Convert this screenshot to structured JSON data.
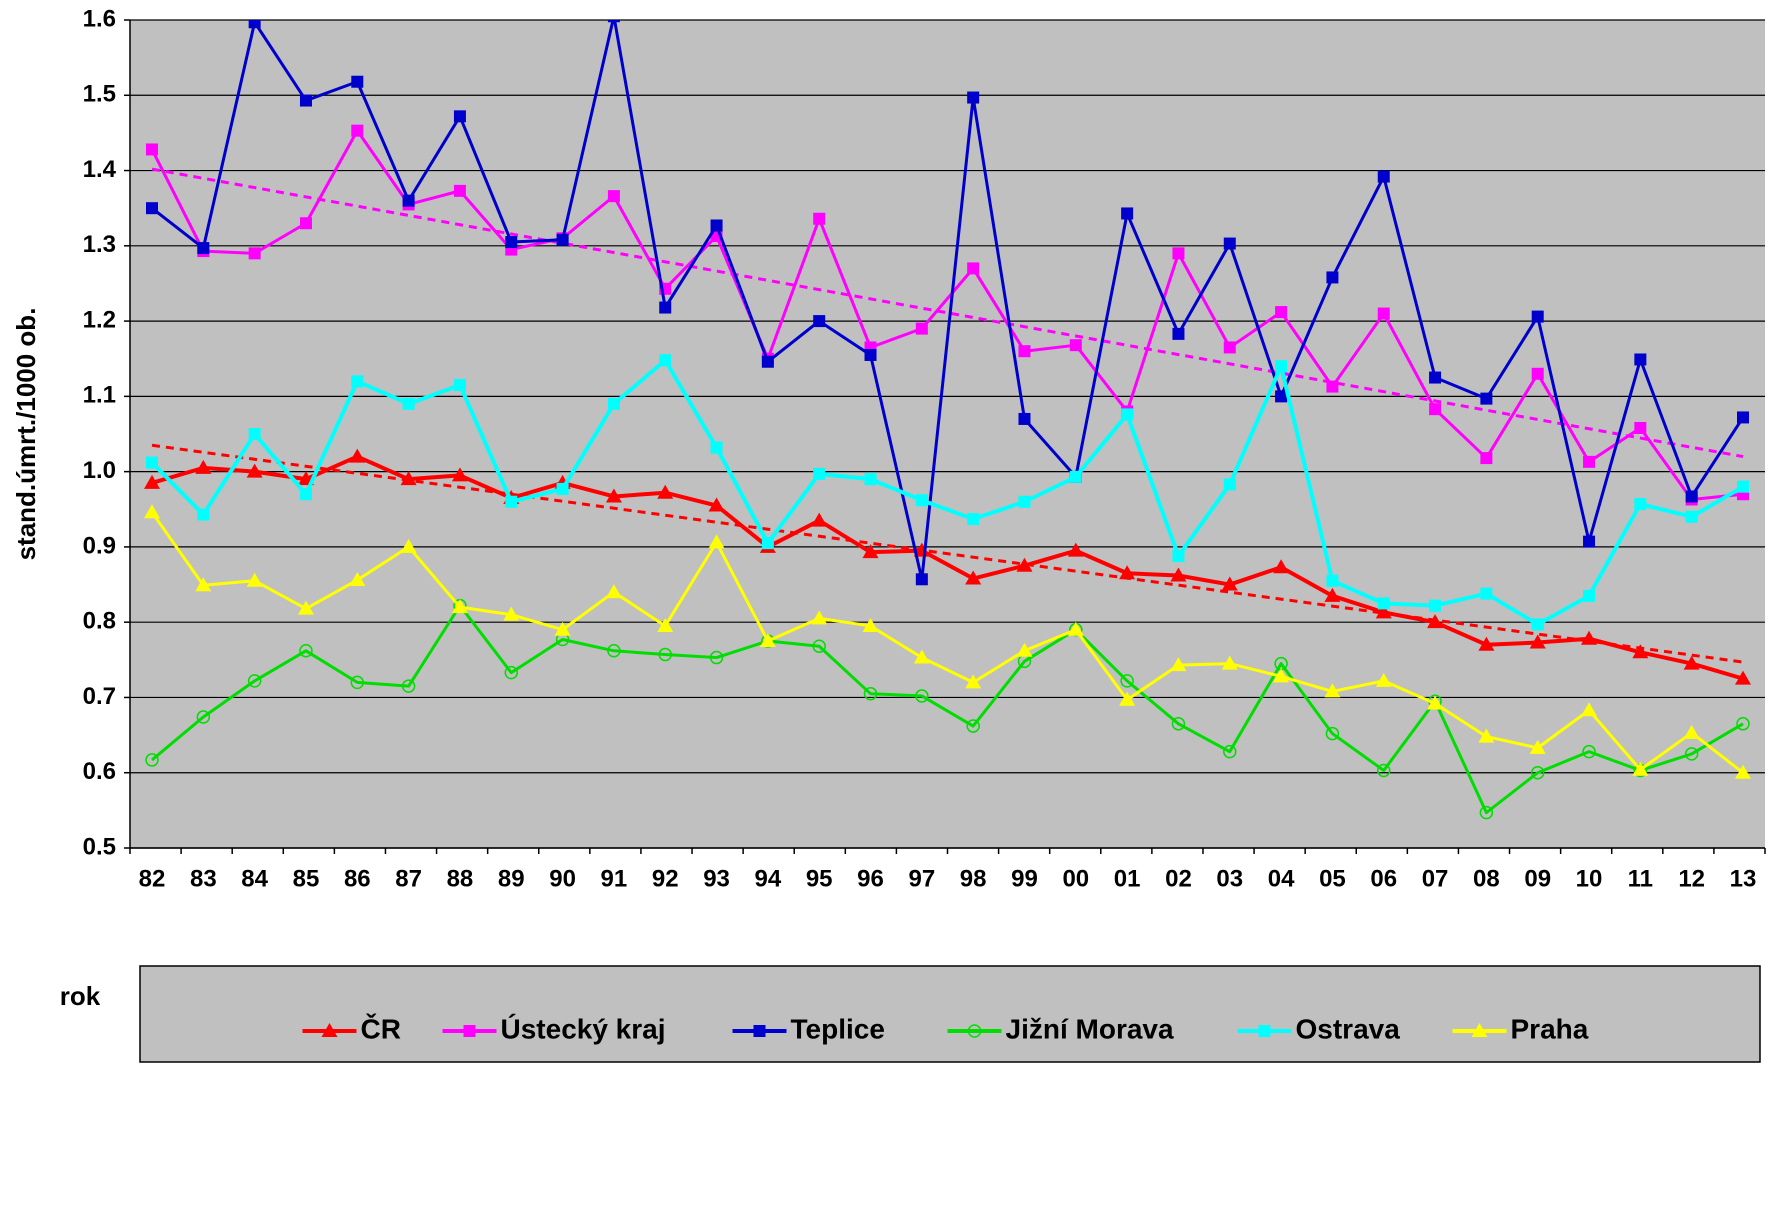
{
  "chart_data": {
    "type": "line",
    "y_label": "stand.úmrt./1000 ob.",
    "x_label": "rok",
    "categories": [
      "82",
      "83",
      "84",
      "85",
      "86",
      "87",
      "88",
      "89",
      "90",
      "91",
      "92",
      "93",
      "94",
      "95",
      "96",
      "97",
      "98",
      "99",
      "00",
      "01",
      "02",
      "03",
      "04",
      "05",
      "06",
      "07",
      "08",
      "09",
      "10",
      "11",
      "12",
      "13"
    ],
    "ylim": [
      0.5,
      1.6
    ],
    "yticks": [
      0.5,
      0.6,
      0.7,
      0.8,
      0.9,
      {
        "value": 1,
        "label": "1.0"
      },
      1.1,
      1.2,
      1.3,
      1.4,
      1.5,
      1.6
    ],
    "grid": true,
    "background": "#c0c0c0",
    "series": [
      {
        "name": "ČR",
        "color": "#ff0000",
        "marker": "triangle",
        "width": 4,
        "values": [
          0.985,
          1.005,
          1.0,
          0.99,
          1.02,
          0.99,
          0.995,
          0.965,
          0.985,
          0.967,
          0.972,
          0.955,
          0.9,
          0.935,
          0.893,
          0.895,
          0.858,
          0.875,
          0.895,
          0.865,
          0.862,
          0.85,
          0.873,
          0.835,
          0.813,
          0.8,
          0.77,
          0.773,
          0.778,
          0.76,
          0.745,
          0.725
        ],
        "trend": [
          1.035,
          0.747
        ]
      },
      {
        "name": "Ústecký kraj",
        "color": "#ff00ff",
        "marker": "square",
        "width": 3,
        "values": [
          1.428,
          1.293,
          1.29,
          1.33,
          1.453,
          1.355,
          1.373,
          1.295,
          1.31,
          1.366,
          1.243,
          1.313,
          1.15,
          1.336,
          1.165,
          1.19,
          1.27,
          1.16,
          1.168,
          1.08,
          1.29,
          1.165,
          1.212,
          1.113,
          1.21,
          1.083,
          1.018,
          1.13,
          1.013,
          1.058,
          0.963,
          0.97
        ],
        "trend": [
          1.402,
          1.02
        ]
      },
      {
        "name": "Teplice",
        "color": "#0000cc",
        "marker": "square",
        "width": 3,
        "values": [
          1.35,
          1.297,
          1.597,
          1.493,
          1.518,
          1.36,
          1.472,
          1.305,
          1.308,
          1.605,
          1.218,
          1.327,
          1.146,
          1.2,
          1.155,
          0.857,
          1.497,
          1.07,
          0.993,
          1.343,
          1.183,
          1.303,
          1.1,
          1.258,
          1.392,
          1.125,
          1.097,
          1.206,
          0.907,
          1.149,
          0.967,
          1.072
        ]
      },
      {
        "name": "Jižní Morava",
        "color": "#00dd00",
        "marker": "circle",
        "width": 3,
        "values": [
          0.617,
          0.674,
          0.722,
          0.762,
          0.72,
          0.715,
          0.822,
          0.733,
          0.777,
          0.762,
          0.757,
          0.753,
          0.775,
          0.768,
          0.705,
          0.702,
          0.662,
          0.748,
          0.79,
          0.722,
          0.665,
          0.628,
          0.745,
          0.652,
          0.603,
          0.695,
          0.547,
          0.6,
          0.628,
          0.603,
          0.625,
          0.665
        ]
      },
      {
        "name": "Ostrava",
        "color": "#00ffff",
        "marker": "square",
        "width": 4,
        "values": [
          1.012,
          0.943,
          1.05,
          0.97,
          1.12,
          1.09,
          1.115,
          0.96,
          0.977,
          1.09,
          1.148,
          1.032,
          0.905,
          0.997,
          0.99,
          0.962,
          0.937,
          0.96,
          0.993,
          1.076,
          0.888,
          0.983,
          1.14,
          0.855,
          0.825,
          0.822,
          0.838,
          0.797,
          0.835,
          0.957,
          0.94,
          0.98
        ]
      },
      {
        "name": "Praha",
        "color": "#ffff00",
        "marker": "triangle",
        "width": 3,
        "values": [
          0.946,
          0.849,
          0.855,
          0.818,
          0.856,
          0.9,
          0.82,
          0.81,
          0.79,
          0.84,
          0.795,
          0.906,
          0.775,
          0.805,
          0.795,
          0.753,
          0.72,
          0.762,
          0.79,
          0.697,
          0.743,
          0.745,
          0.728,
          0.708,
          0.722,
          0.692,
          0.648,
          0.633,
          0.683,
          0.604,
          0.653,
          0.6
        ]
      }
    ]
  }
}
